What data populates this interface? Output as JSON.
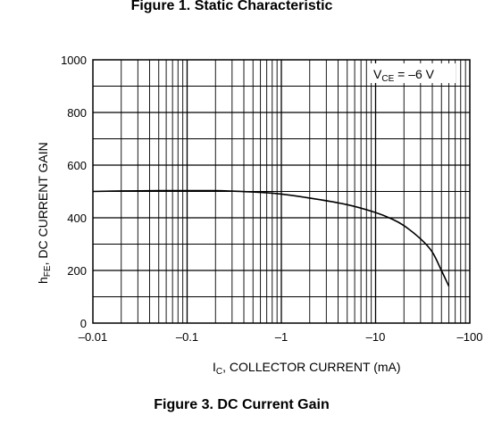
{
  "header": {
    "title": "Figure 1. Static Characteristic"
  },
  "footer": {
    "title": "Figure 3. DC Current Gain"
  },
  "chart_data": {
    "type": "line",
    "x_scale": "log",
    "xlim": [
      0.01,
      100
    ],
    "ylim": [
      0,
      1000
    ],
    "x_ticks": [
      0.01,
      0.1,
      1,
      10,
      100
    ],
    "x_tick_labels": [
      "–0.01",
      "–0.1",
      "–1",
      "–10",
      "–100"
    ],
    "y_ticks": [
      0,
      200,
      400,
      600,
      800,
      1000
    ],
    "y_tick_labels": [
      "0",
      "200",
      "400",
      "600",
      "800",
      "1000"
    ],
    "xlabel": {
      "sym": "I",
      "sub": "C",
      "rest": ", COLLECTOR CURRENT (mA)"
    },
    "ylabel": {
      "sym": "h",
      "sub": "FE",
      "rest": ", DC CURRENT GAIN"
    },
    "annotation": {
      "sym": "V",
      "sub": "CE",
      "rest": " = –6 V"
    },
    "grid": true,
    "series": [
      {
        "x": [
          0.01,
          0.02,
          0.05,
          0.1,
          0.2,
          0.5,
          1,
          2,
          5,
          10,
          15,
          20,
          30,
          40,
          50,
          60
        ],
        "y": [
          500,
          502,
          503,
          503,
          503,
          498,
          490,
          475,
          450,
          420,
          395,
          370,
          320,
          270,
          200,
          140
        ]
      }
    ]
  }
}
